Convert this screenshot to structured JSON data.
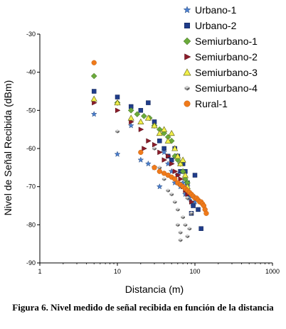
{
  "caption": "Figura 6. Nivel medido de señal recibida en función de la distancia",
  "chart_data": {
    "type": "scatter",
    "title": "",
    "xlabel": "Distancia (m)",
    "ylabel": "Nivel de Señal Recibida (dBm)",
    "xscale": "log",
    "xlim": [
      1,
      1000
    ],
    "ylim": [
      -90,
      -30
    ],
    "x_ticks": [
      "1",
      "10",
      "100",
      "1000"
    ],
    "y_ticks": [
      "-30",
      "-40",
      "-50",
      "-60",
      "-70",
      "-80",
      "-90"
    ],
    "grid": false,
    "legend_position": "top-right",
    "series": [
      {
        "name": "Urbano-1",
        "marker": "star",
        "color": "#4a7fd0",
        "points": [
          [
            5,
            -51
          ],
          [
            10,
            -61.5
          ],
          [
            15,
            -54
          ],
          [
            20,
            -63
          ],
          [
            25,
            -64
          ],
          [
            30,
            -65
          ],
          [
            35,
            -70
          ],
          [
            40,
            -61
          ],
          [
            45,
            -64
          ],
          [
            50,
            -66
          ],
          [
            55,
            -69
          ],
          [
            60,
            -67
          ],
          [
            65,
            -70
          ],
          [
            70,
            -69
          ],
          [
            75,
            -72
          ],
          [
            80,
            -70
          ],
          [
            85,
            -73
          ],
          [
            90,
            -74
          ],
          [
            95,
            -75
          ],
          [
            100,
            -74
          ]
        ]
      },
      {
        "name": "Urbano-2",
        "marker": "square",
        "color": "#1f3c8a",
        "points": [
          [
            5,
            -45
          ],
          [
            10,
            -46.5
          ],
          [
            15,
            -49
          ],
          [
            20,
            -50
          ],
          [
            25,
            -48
          ],
          [
            30,
            -53
          ],
          [
            35,
            -58
          ],
          [
            40,
            -60
          ],
          [
            45,
            -62
          ],
          [
            50,
            -63
          ],
          [
            55,
            -60
          ],
          [
            60,
            -62
          ],
          [
            65,
            -66
          ],
          [
            70,
            -64
          ],
          [
            75,
            -66
          ],
          [
            80,
            -69
          ],
          [
            85,
            -72
          ],
          [
            90,
            -77
          ],
          [
            95,
            -75
          ],
          [
            100,
            -67
          ],
          [
            110,
            -76
          ],
          [
            120,
            -81
          ]
        ]
      },
      {
        "name": "Semiurbano-1",
        "marker": "diamond",
        "color": "#6aaa3a",
        "points": [
          [
            5,
            -41
          ],
          [
            10,
            -48
          ],
          [
            15,
            -50
          ],
          [
            18,
            -51
          ],
          [
            22,
            -51.5
          ],
          [
            26,
            -52
          ],
          [
            30,
            -54
          ],
          [
            35,
            -55
          ],
          [
            40,
            -56
          ],
          [
            45,
            -57
          ],
          [
            50,
            -58
          ],
          [
            55,
            -62
          ],
          [
            60,
            -63
          ],
          [
            65,
            -64
          ],
          [
            70,
            -66
          ],
          [
            75,
            -68
          ],
          [
            80,
            -69
          ]
        ]
      },
      {
        "name": "Semiurbano-2",
        "marker": "triangle-right",
        "color": "#8b1c2a",
        "points": [
          [
            5,
            -48
          ],
          [
            10,
            -50
          ],
          [
            15,
            -53
          ],
          [
            20,
            -55
          ],
          [
            22,
            -60
          ],
          [
            25,
            -58
          ],
          [
            30,
            -59
          ],
          [
            35,
            -61
          ],
          [
            40,
            -63
          ],
          [
            45,
            -62
          ],
          [
            50,
            -64
          ],
          [
            55,
            -66
          ],
          [
            60,
            -67
          ],
          [
            65,
            -68
          ],
          [
            70,
            -70
          ],
          [
            75,
            -71
          ],
          [
            80,
            -72
          ],
          [
            90,
            -74
          ]
        ]
      },
      {
        "name": "Semiurbano-3",
        "marker": "triangle-up",
        "color": "#f2f04a",
        "points": [
          [
            5,
            -47
          ],
          [
            10,
            -48
          ],
          [
            15,
            -52
          ],
          [
            20,
            -53
          ],
          [
            25,
            -52
          ],
          [
            30,
            -54
          ],
          [
            35,
            -56
          ],
          [
            40,
            -55
          ],
          [
            45,
            -58
          ],
          [
            50,
            -56
          ],
          [
            55,
            -60
          ],
          [
            60,
            -62
          ],
          [
            65,
            -64
          ],
          [
            70,
            -63
          ],
          [
            75,
            -67
          ],
          [
            80,
            -70
          ]
        ]
      },
      {
        "name": "Semiurbano-4",
        "marker": "cube",
        "color": "#8a8a8a",
        "points": [
          [
            10,
            -55.5
          ],
          [
            30,
            -60
          ],
          [
            35,
            -65
          ],
          [
            40,
            -68
          ],
          [
            45,
            -71
          ],
          [
            50,
            -72
          ],
          [
            55,
            -74
          ],
          [
            60,
            -76
          ],
          [
            60,
            -80
          ],
          [
            65,
            -82
          ],
          [
            65,
            -84
          ],
          [
            70,
            -78
          ],
          [
            75,
            -80
          ],
          [
            80,
            -83
          ],
          [
            80,
            -73
          ],
          [
            85,
            -81
          ],
          [
            90,
            -77
          ]
        ]
      },
      {
        "name": "Rural-1",
        "marker": "circle",
        "color": "#f07a1a",
        "points": [
          [
            5,
            -37.5
          ],
          [
            20,
            -61
          ],
          [
            30,
            -65
          ],
          [
            35,
            -66
          ],
          [
            40,
            -66.5
          ],
          [
            45,
            -67
          ],
          [
            50,
            -67.5
          ],
          [
            55,
            -68
          ],
          [
            60,
            -69
          ],
          [
            65,
            -69.5
          ],
          [
            70,
            -70
          ],
          [
            75,
            -70.5
          ],
          [
            80,
            -71
          ],
          [
            85,
            -71.5
          ],
          [
            90,
            -72
          ],
          [
            95,
            -72.5
          ],
          [
            100,
            -73
          ],
          [
            105,
            -73
          ],
          [
            110,
            -73.5
          ],
          [
            115,
            -74
          ],
          [
            120,
            -74
          ],
          [
            125,
            -74.5
          ],
          [
            130,
            -75
          ],
          [
            135,
            -76
          ],
          [
            140,
            -77
          ]
        ]
      }
    ]
  }
}
